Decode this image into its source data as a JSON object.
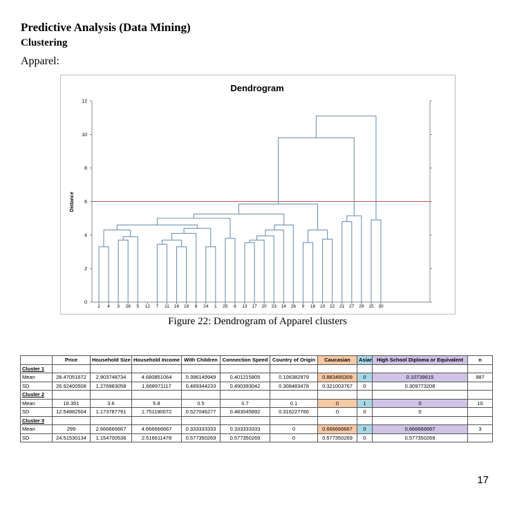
{
  "heading": "Predictive Analysis (Data Mining)",
  "subheading": "Clustering",
  "section": "Apparel:",
  "figure_caption": "Figure 22: Dendrogram of Apparel clusters",
  "page_number": "17",
  "colors": {
    "link": "#6f93b3",
    "threshold": "#c0504d",
    "caucasian": "#f7c9a4",
    "asian": "#a8d8e6",
    "hs": "#cfc3e6"
  },
  "chart_data": {
    "type": "dendrogram",
    "title": "Dendrogram",
    "ylabel": "Distance",
    "xlabel": "",
    "ylim": [
      0,
      12
    ],
    "yticks": [
      0,
      2,
      4,
      6,
      8,
      10,
      12
    ],
    "threshold": 6.0,
    "leaves": [
      "2",
      "4",
      "3",
      "28",
      "5",
      "12",
      "7",
      "11",
      "16",
      "19",
      "8",
      "24",
      "1",
      "25",
      "6",
      "13",
      "17",
      "20",
      "23",
      "14",
      "26",
      "9",
      "18",
      "10",
      "22",
      "21",
      "27",
      "29",
      "15",
      "30"
    ],
    "merges": [
      {
        "left": "L:2",
        "right": "L:4",
        "height": 3.3
      },
      {
        "left": "L:3",
        "right": "L:28",
        "height": 3.7
      },
      {
        "left": "M:1",
        "right": "L:5",
        "height": 3.9
      },
      {
        "left": "M:0",
        "right": "M:2",
        "height": 4.3
      },
      {
        "left": "L:7",
        "right": "L:11",
        "height": 3.45
      },
      {
        "left": "L:16",
        "right": "L:19",
        "height": 3.3
      },
      {
        "left": "M:4",
        "right": "M:5",
        "height": 3.7
      },
      {
        "left": "M:6",
        "right": "L:8",
        "height": 4.1
      },
      {
        "left": "L:24",
        "right": "L:1",
        "height": 3.3
      },
      {
        "left": "M:7",
        "right": "M:8",
        "height": 4.4
      },
      {
        "left": "M:3",
        "right": "M:9",
        "height": 4.6
      },
      {
        "left": "L:25",
        "right": "L:6",
        "height": 3.8
      },
      {
        "left": "M:10",
        "right": "M:11",
        "height": 5.0
      },
      {
        "left": "L:13",
        "right": "L:17",
        "height": 3.55
      },
      {
        "left": "M:13",
        "right": "L:20",
        "height": 3.7
      },
      {
        "left": "M:14",
        "right": "L:23",
        "height": 3.95
      },
      {
        "left": "M:15",
        "right": "L:14",
        "height": 4.3
      },
      {
        "left": "M:16",
        "right": "L:26",
        "height": 4.6
      },
      {
        "left": "L:9",
        "right": "L:18",
        "height": 3.55
      },
      {
        "left": "L:10",
        "right": "L:22",
        "height": 3.75
      },
      {
        "left": "M:18",
        "right": "M:19",
        "height": 4.3
      },
      {
        "left": "M:12",
        "right": "M:17",
        "height": 5.25
      },
      {
        "left": "M:21",
        "right": "M:20",
        "height": 5.85
      },
      {
        "left": "L:21",
        "right": "L:27",
        "height": 4.8
      },
      {
        "left": "M:23",
        "right": "L:29",
        "height": 5.15
      },
      {
        "left": "M:22",
        "right": "M:24",
        "height": 9.8
      },
      {
        "left": "L:15",
        "right": "L:30",
        "height": 4.9
      },
      {
        "left": "M:25",
        "right": "M:26",
        "height": 11.1
      }
    ]
  },
  "table": {
    "headers": [
      "",
      "Price",
      "Household Size",
      "Household Income",
      "With Children",
      "Connection Speed",
      "Country of Origin",
      "Caucasian",
      "Asian",
      "High School Diploma or Equivalent",
      "n"
    ],
    "rows": [
      {
        "type": "cluster",
        "cells": [
          "Cluster 1"
        ]
      },
      {
        "type": "data",
        "cells": [
          "Mean",
          "28.47051672",
          "2.903748734",
          "4.680851064",
          "0.396149949",
          "0.401215805",
          "0.106382979",
          "0.883485309",
          "0",
          "0.10739615",
          "987"
        ]
      },
      {
        "type": "data",
        "cells": [
          "SD",
          "26.92400508",
          "1.276983058",
          "1.668971117",
          "0.489344233",
          "0.490393042",
          "0.308483478",
          "0.321003767",
          "0",
          "0.309773208",
          ""
        ]
      },
      {
        "type": "cluster",
        "cells": [
          "Cluster 2"
        ]
      },
      {
        "type": "data",
        "cells": [
          "Mean",
          "16.351",
          "3.6",
          "5.8",
          "0.5",
          "0.7",
          "0.1",
          "0",
          "1",
          "0",
          "10"
        ]
      },
      {
        "type": "data",
        "cells": [
          "SD",
          "12.54882504",
          "1.173787791",
          "1.751190072",
          "0.527046277",
          "0.483045892",
          "0.316227766",
          "0",
          "0",
          "0",
          ""
        ]
      },
      {
        "type": "cluster",
        "cells": [
          "Cluster 3"
        ]
      },
      {
        "type": "data",
        "cells": [
          "Mean",
          "299",
          "2.666666667",
          "4.666666667",
          "0.333333333",
          "0.333333333",
          "0",
          "0.666666667",
          "0",
          "0.666666667",
          "3"
        ]
      },
      {
        "type": "data",
        "cells": [
          "SD",
          "24.51530134",
          "1.154700538",
          "2.516611478",
          "0.577350269",
          "0.577350269",
          "0",
          "0.577350269",
          "0",
          "0.577350269",
          ""
        ]
      }
    ]
  }
}
